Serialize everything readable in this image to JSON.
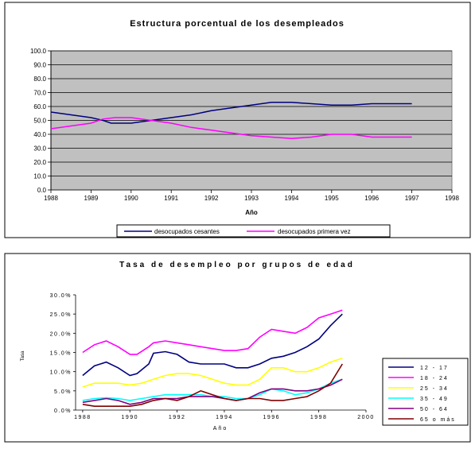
{
  "chart_data": [
    {
      "type": "line",
      "title": "Estructura porcentual de los desempleados",
      "xlabel": "Año",
      "ylabel": "",
      "xlim": [
        1988,
        1998
      ],
      "ylim": [
        0,
        100
      ],
      "x_ticks": [
        "1988",
        "1989",
        "1990",
        "1991",
        "1992",
        "1993",
        "1994",
        "1995",
        "1996",
        "1997",
        "1998"
      ],
      "y_ticks": [
        "0.0",
        "10.0",
        "20.0",
        "30.0",
        "40.0",
        "50.0",
        "60.0",
        "70.0",
        "80.0",
        "90.0",
        "100.0"
      ],
      "grid": true,
      "plot_background": "#c0c0c0",
      "legend_position": "bottom",
      "series": [
        {
          "name": "desocupados cesantes",
          "color": "#000080",
          "x": [
            1988,
            1988.5,
            1989,
            1989.3,
            1989.5,
            1990,
            1990.5,
            1991,
            1991.5,
            1992,
            1992.5,
            1993,
            1993.5,
            1994,
            1994.5,
            1995,
            1995.5,
            1996,
            1996.5,
            1997
          ],
          "values": [
            56,
            54,
            52,
            50,
            48,
            48,
            50,
            52,
            54,
            57,
            59,
            61,
            63,
            63,
            62,
            61,
            61,
            62,
            62,
            62
          ]
        },
        {
          "name": "desocupados primera vez",
          "color": "#ff00ff",
          "x": [
            1988,
            1988.5,
            1989,
            1989.3,
            1989.6,
            1990,
            1990.5,
            1991,
            1991.5,
            1992,
            1992.5,
            1993,
            1993.5,
            1994,
            1994.5,
            1995,
            1995.5,
            1996,
            1996.5,
            1997
          ],
          "values": [
            44,
            46,
            48,
            51,
            52,
            52,
            50,
            48,
            45,
            43,
            41,
            39,
            38,
            37,
            38,
            40,
            40,
            38,
            38,
            38
          ]
        }
      ]
    },
    {
      "type": "line",
      "title": "Tasa de desempleo por grupos de edad",
      "xlabel": "Año",
      "ylabel": "Tasa",
      "xlim": [
        1987.7,
        2000
      ],
      "ylim": [
        0,
        30
      ],
      "x_ticks": [
        "1988",
        "1990",
        "1992",
        "1994",
        "1996",
        "1998",
        "2000"
      ],
      "y_ticks": [
        "0.0%",
        "5.0%",
        "10.0%",
        "15.0%",
        "20.0%",
        "25.0%",
        "30.0%"
      ],
      "grid": false,
      "legend_position": "right",
      "series": [
        {
          "name": "12 - 17",
          "color": "#000080",
          "x": [
            1988,
            1988.5,
            1989,
            1989.5,
            1990,
            1990.3,
            1990.8,
            1991,
            1991.5,
            1992,
            1992.5,
            1993,
            1993.5,
            1994,
            1994.5,
            1995,
            1995.5,
            1996,
            1996.5,
            1997,
            1997.5,
            1998,
            1998.5,
            1999
          ],
          "values": [
            9,
            11.5,
            12.5,
            11,
            9,
            9.5,
            12,
            14.8,
            15.2,
            14.5,
            12.5,
            12,
            12,
            12,
            11,
            11,
            12,
            13.5,
            14,
            15,
            16.5,
            18.5,
            22,
            25
          ]
        },
        {
          "name": "18 - 24",
          "color": "#ff00ff",
          "x": [
            1988,
            1988.5,
            1989,
            1989.5,
            1990,
            1990.3,
            1990.8,
            1991,
            1991.5,
            1992,
            1992.5,
            1993,
            1993.5,
            1994,
            1994.5,
            1995,
            1995.5,
            1996,
            1996.5,
            1997,
            1997.5,
            1998,
            1998.5,
            1999
          ],
          "values": [
            15,
            17,
            18,
            16.5,
            14.5,
            14.5,
            16.5,
            17.5,
            18,
            17.5,
            17,
            16.5,
            16,
            15.5,
            15.5,
            16,
            19,
            21,
            20.5,
            20,
            21.5,
            24,
            25,
            26
          ]
        },
        {
          "name": "25 - 34",
          "color": "#ffff00",
          "x": [
            1988,
            1988.5,
            1989,
            1989.5,
            1990,
            1990.5,
            1991,
            1991.5,
            1992,
            1992.5,
            1993,
            1993.5,
            1994,
            1994.5,
            1995,
            1995.5,
            1996,
            1996.5,
            1997,
            1997.5,
            1998,
            1998.5,
            1999
          ],
          "values": [
            6,
            7,
            7,
            7,
            6.5,
            7,
            8,
            9,
            9.5,
            9.5,
            9,
            8,
            7,
            6.5,
            6.5,
            8,
            11,
            11,
            10,
            10,
            11,
            12.5,
            13.5
          ]
        },
        {
          "name": "35 - 49",
          "color": "#00ffff",
          "x": [
            1988,
            1988.5,
            1989,
            1989.5,
            1990,
            1990.5,
            1991,
            1991.5,
            1992,
            1992.5,
            1993,
            1993.5,
            1994,
            1994.5,
            1995,
            1995.5,
            1996,
            1996.5,
            1997,
            1997.5,
            1998,
            1998.5,
            1999
          ],
          "values": [
            2.5,
            3,
            3.2,
            3,
            2.5,
            3,
            3.5,
            4,
            4,
            4,
            4,
            3.5,
            3.5,
            3,
            3,
            4,
            5.5,
            5,
            4,
            4.5,
            5.5,
            7,
            8
          ]
        },
        {
          "name": "50 - 64",
          "color": "#800080",
          "x": [
            1988,
            1988.5,
            1989,
            1989.5,
            1990,
            1990.5,
            1991,
            1991.5,
            1992,
            1992.5,
            1993,
            1993.5,
            1994,
            1994.5,
            1995,
            1995.5,
            1996,
            1996.5,
            1997,
            1997.5,
            1998,
            1998.5,
            1999
          ],
          "values": [
            2,
            2.5,
            3,
            2.5,
            1.5,
            2,
            3,
            3,
            3,
            3.5,
            3.5,
            3.5,
            3,
            2.5,
            3,
            4.5,
            5.5,
            5.5,
            5,
            5,
            5.5,
            6.5,
            8
          ]
        },
        {
          "name": "65 o más",
          "color": "#800000",
          "x": [
            1988,
            1988.5,
            1989,
            1989.5,
            1990,
            1990.5,
            1991,
            1991.5,
            1992,
            1992.5,
            1993,
            1993.5,
            1994,
            1994.5,
            1995,
            1995.5,
            1996,
            1996.5,
            1997,
            1997.5,
            1998,
            1998.5,
            1999
          ],
          "values": [
            1.5,
            1,
            1,
            1,
            1,
            1.5,
            2.5,
            3,
            2.5,
            3.5,
            5,
            4,
            3,
            2.5,
            3,
            3,
            2.5,
            2.5,
            3,
            3.5,
            5,
            7,
            12
          ]
        }
      ]
    }
  ]
}
